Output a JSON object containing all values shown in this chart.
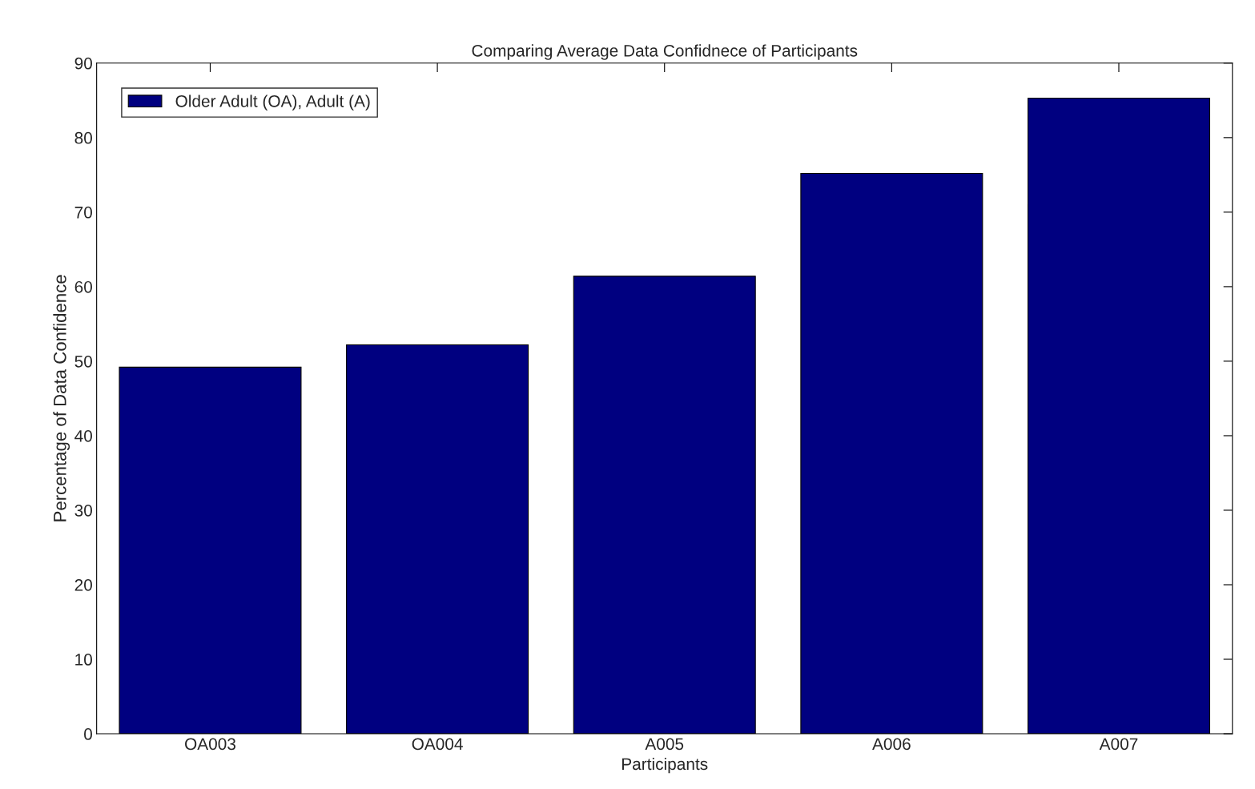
{
  "chart_data": {
    "type": "bar",
    "title": "Comparing Average Data Confidnece of Participants",
    "xlabel": "Participants",
    "ylabel": "Percentage of Data Confidence",
    "categories": [
      "OA003",
      "OA004",
      "A005",
      "A006",
      "A007"
    ],
    "series": [
      {
        "name": "Older Adult (OA), Adult (A)",
        "color": "#000080",
        "values": [
          49.2,
          52.2,
          61.4,
          75.2,
          85.3
        ]
      }
    ],
    "ylim": [
      0,
      90
    ],
    "yticks": [
      0,
      10,
      20,
      30,
      40,
      50,
      60,
      70,
      80,
      90
    ],
    "grid": false,
    "legend": "top left"
  }
}
